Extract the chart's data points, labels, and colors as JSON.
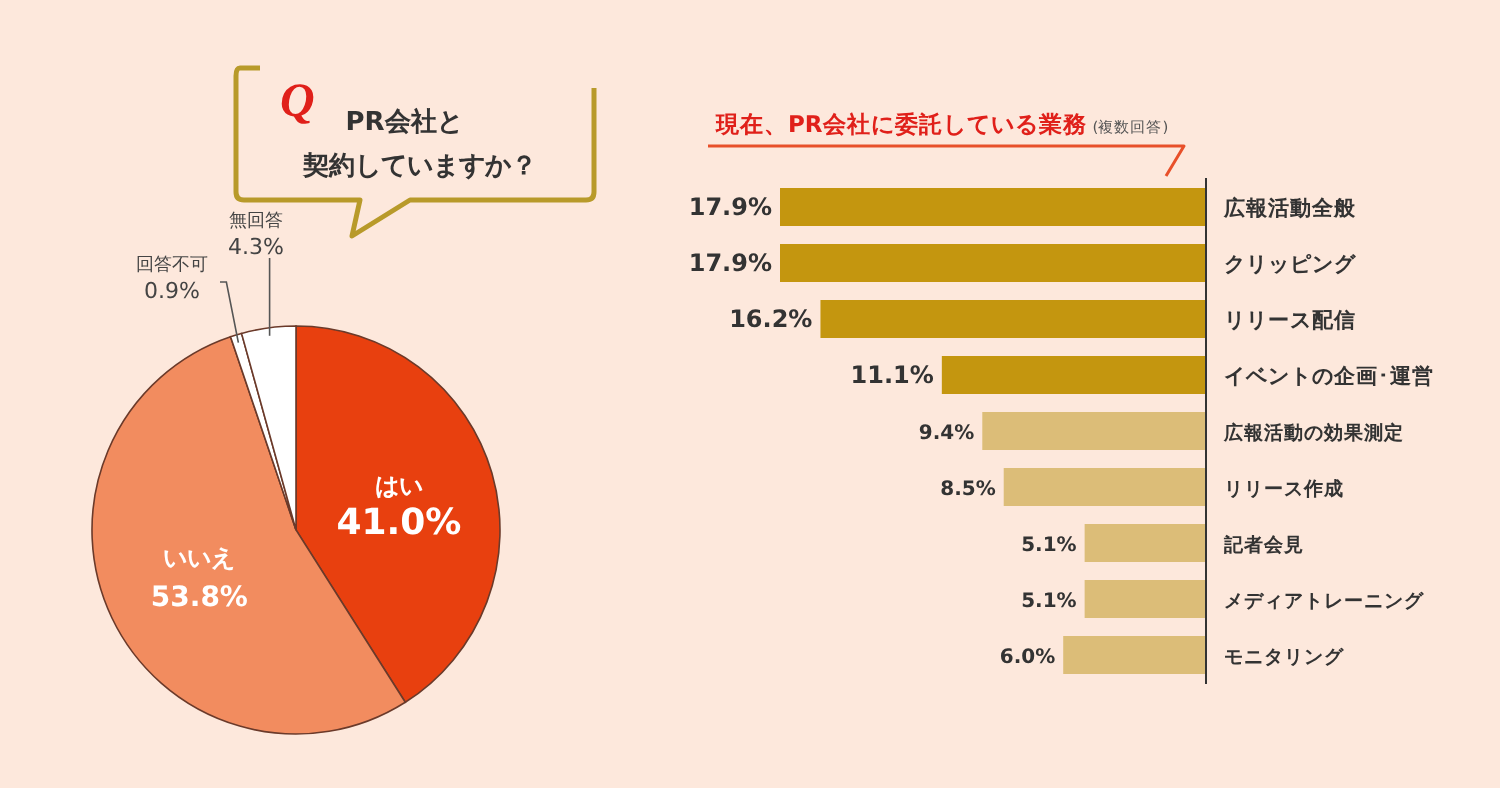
{
  "chart_data": [
    {
      "type": "pie",
      "title": "PR会社と契約していますか？",
      "annotations": [
        "Q"
      ],
      "categories": [
        "はい",
        "いいえ",
        "回答不可",
        "無回答"
      ],
      "values": [
        41.0,
        53.8,
        0.9,
        4.3
      ],
      "colors": [
        "#e8400f",
        "#f28c5f",
        "#ffffff",
        "#ffffff"
      ],
      "value_labels": [
        "41.0%",
        "53.8%",
        "0.9%",
        "4.3%"
      ]
    },
    {
      "type": "bar",
      "orientation": "horizontal",
      "title": "現在、PR会社に委託している業務",
      "subtitle": "(複数回答)",
      "categories": [
        "広報活動全般",
        "クリッピング",
        "リリース配信",
        "イベントの企画･運営",
        "広報活動の効果測定",
        "リリース作成",
        "記者会見",
        "メディアトレーニング",
        "モニタリング"
      ],
      "values": [
        17.9,
        17.9,
        16.2,
        11.1,
        9.4,
        8.5,
        5.1,
        5.1,
        6.0
      ],
      "colors": [
        "#c4960f",
        "#c4960f",
        "#c4960f",
        "#c4960f",
        "#dcbd78",
        "#dcbd78",
        "#dcbd78",
        "#dcbd78",
        "#dcbd78"
      ],
      "value_labels": [
        "17.9%",
        "17.9%",
        "16.2%",
        "11.1%",
        "9.4%",
        "8.5%",
        "5.1%",
        "5.1%",
        "6.0%"
      ]
    }
  ]
}
